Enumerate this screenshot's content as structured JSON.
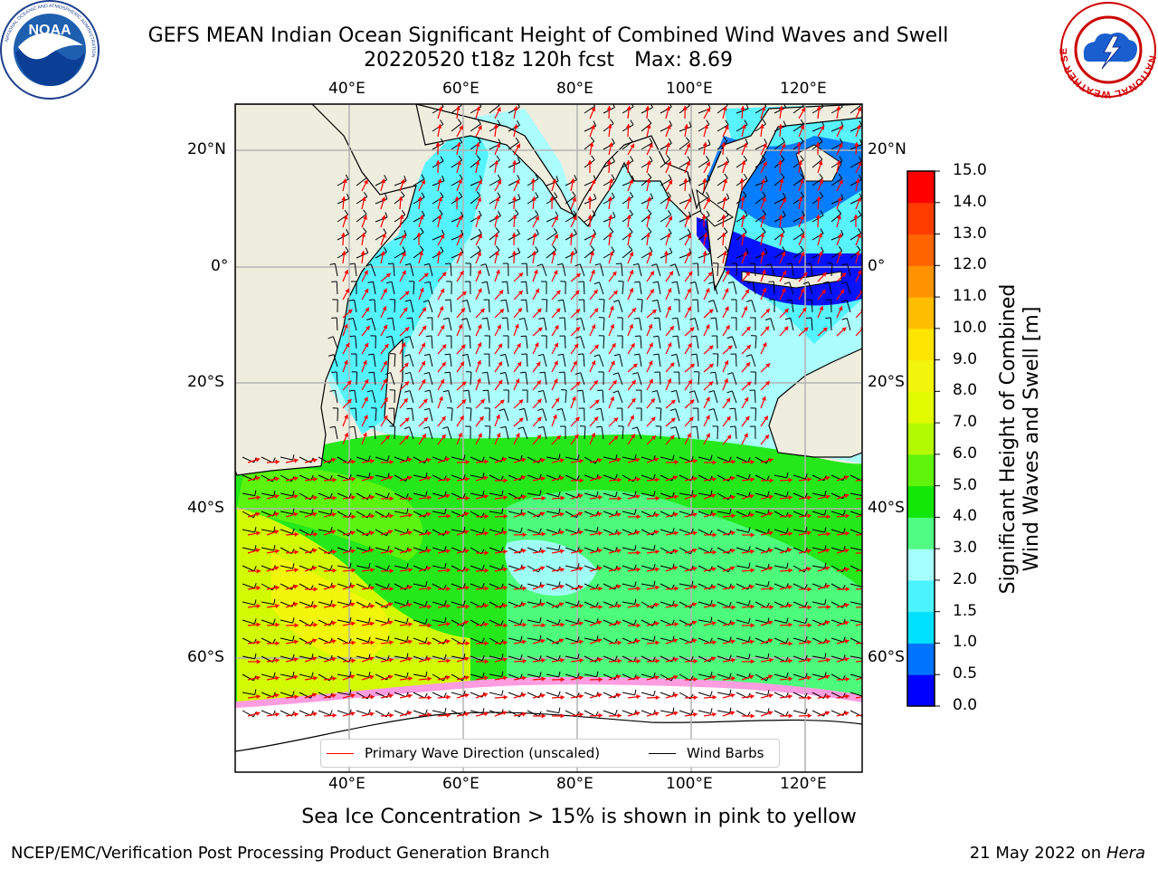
{
  "title": {
    "line1": "GEFS MEAN Indian Ocean Significant Height of Combined Wind Waves and Swell",
    "run": "20220520 t18z 120h fcst",
    "max": "Max: 8.69"
  },
  "map": {
    "lon_ticks": [
      "40°E",
      "60°E",
      "80°E",
      "100°E",
      "120°E"
    ],
    "lat_ticks": [
      "20°N",
      "0°",
      "20°S",
      "40°S",
      "60°S"
    ],
    "colors": {
      "land": "#efedde",
      "ice": "#ffffff",
      "grid": "#b3b3b3",
      "arrow": "#ff0000",
      "barb": "#000000"
    }
  },
  "legend": {
    "wave_direction": "Primary Wave Direction (unscaled)",
    "wind_barbs": "Wind Barbs"
  },
  "colorbar": {
    "label_line1": "Significant Height of Combined",
    "label_line2": "Wind Waves and Swell [m]",
    "ticks": [
      "0.0",
      "0.5",
      "1.0",
      "1.5",
      "2.0",
      "3.0",
      "4.0",
      "5.0",
      "6.0",
      "7.0",
      "8.0",
      "9.0",
      "10.0",
      "11.0",
      "12.0",
      "13.0",
      "14.0",
      "15.0"
    ],
    "colors": [
      "#0000ff",
      "#0073ff",
      "#00e0ff",
      "#4bf3ff",
      "#a5ffff",
      "#50fd82",
      "#12e708",
      "#60f40d",
      "#b2fa01",
      "#e2fb00",
      "#f4f50c",
      "#ffe400",
      "#ffbd00",
      "#ff9200",
      "#ff6400",
      "#ff3c00",
      "#ff0000"
    ]
  },
  "logos": {
    "noaa": {
      "name": "NOAA",
      "ring_text": "NATIONAL OCEANIC AND ATMOSPHERIC ADMINISTRATION",
      "dept": "U.S. DEPARTMENT OF COMMERCE"
    },
    "nws": {
      "ring_text": "NATIONAL WEATHER SERVICE"
    }
  },
  "footer": {
    "note": "Sea Ice Concentration > 15% is shown in pink to yellow",
    "left": "NCEP/EMC/Verification Post Processing Product Generation Branch",
    "date": "21 May 2022 on",
    "host": "Hera"
  }
}
